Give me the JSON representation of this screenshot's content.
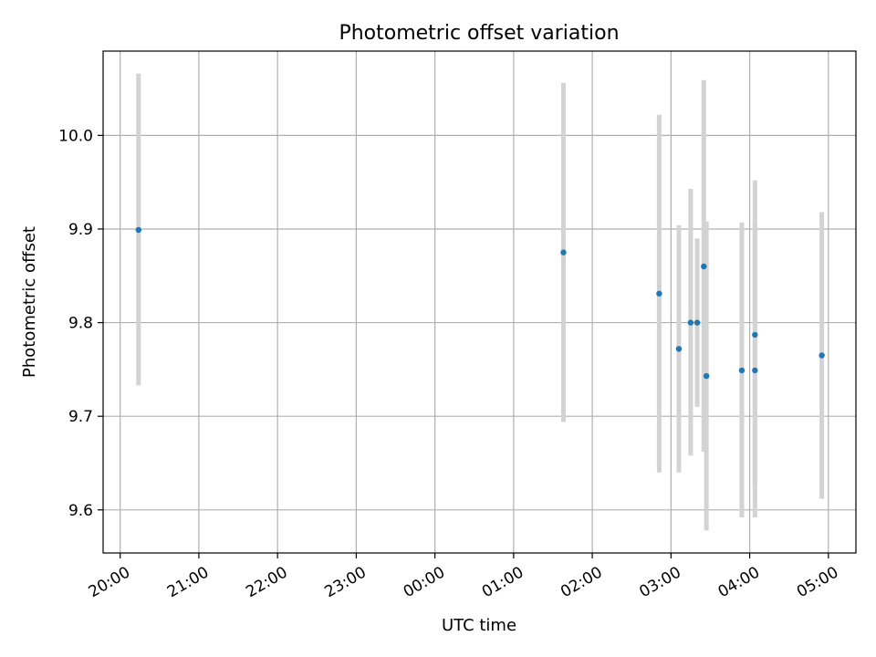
{
  "chart_data": {
    "type": "scatter",
    "title": "Photometric offset variation",
    "xlabel": "UTC time",
    "ylabel": "Photometric offset",
    "x_ticks": [
      "20:00",
      "21:00",
      "22:00",
      "23:00",
      "00:00",
      "01:00",
      "02:00",
      "03:00",
      "04:00",
      "05:00"
    ],
    "y_ticks": [
      "9.6",
      "9.7",
      "9.8",
      "9.9",
      "10.0"
    ],
    "xlim": [
      "19:47",
      "05:21"
    ],
    "ylim": [
      9.554,
      10.09
    ],
    "grid": true,
    "colors": {
      "points": "#1f77b4",
      "error_bars": "#d3d3d3"
    },
    "points": [
      {
        "x": "20:14",
        "y": 9.899,
        "err_low": 9.733,
        "err_high": 10.066
      },
      {
        "x": "01:38",
        "y": 9.875,
        "err_low": 9.694,
        "err_high": 10.056
      },
      {
        "x": "02:51",
        "y": 9.831,
        "err_low": 9.64,
        "err_high": 10.022
      },
      {
        "x": "03:06",
        "y": 9.772,
        "err_low": 9.64,
        "err_high": 9.904
      },
      {
        "x": "03:15",
        "y": 9.8,
        "err_low": 9.658,
        "err_high": 9.943
      },
      {
        "x": "03:20",
        "y": 9.8,
        "err_low": 9.71,
        "err_high": 9.89
      },
      {
        "x": "03:25",
        "y": 9.86,
        "err_low": 9.662,
        "err_high": 10.059
      },
      {
        "x": "03:27",
        "y": 9.743,
        "err_low": 9.578,
        "err_high": 9.908
      },
      {
        "x": "03:54",
        "y": 9.749,
        "err_low": 9.592,
        "err_high": 9.907
      },
      {
        "x": "04:04",
        "y": 9.787,
        "err_low": 9.625,
        "err_high": 9.952
      },
      {
        "x": "04:04",
        "y": 9.749,
        "err_low": 9.592,
        "err_high": 9.907
      },
      {
        "x": "04:55",
        "y": 9.765,
        "err_low": 9.612,
        "err_high": 9.918
      }
    ]
  }
}
